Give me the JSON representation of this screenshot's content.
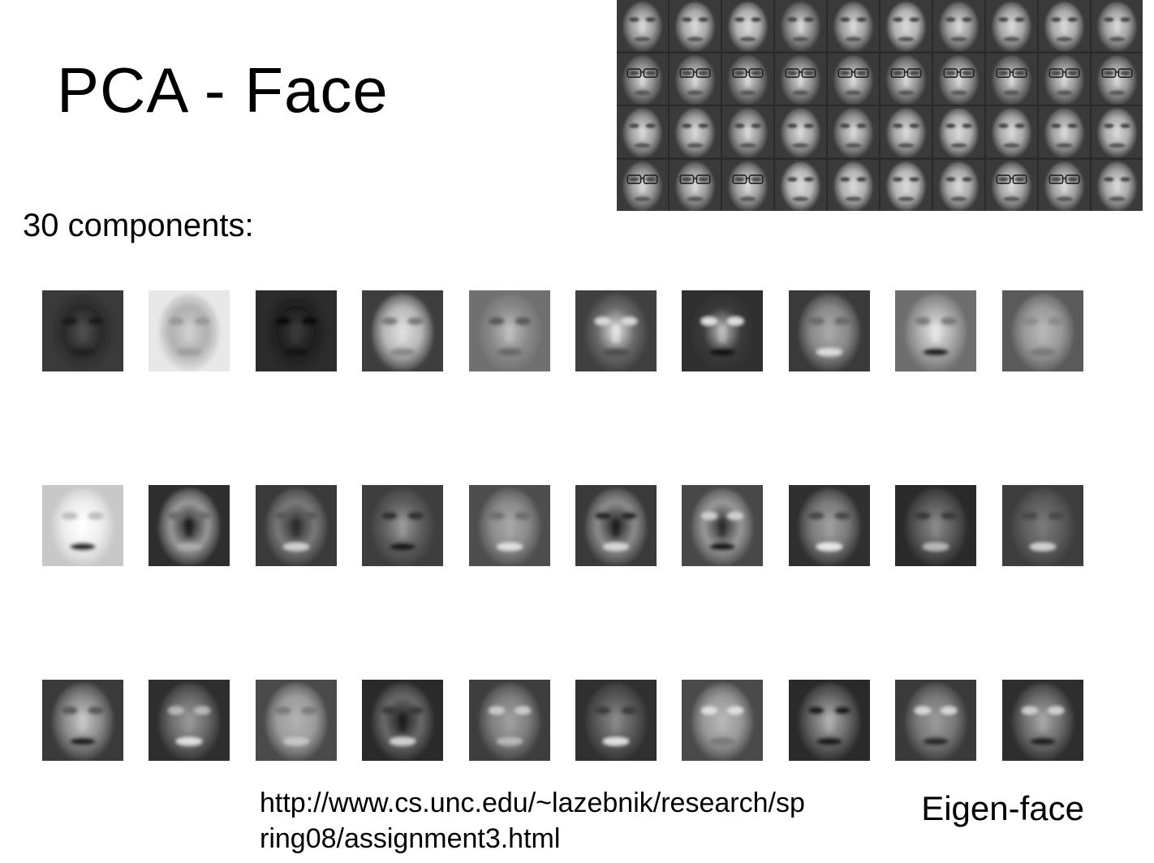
{
  "slide": {
    "title": "PCA - Face",
    "subtitle": "30 components:",
    "caption": "Eigen-face",
    "url_line1": "http://www.cs.unc.edu/~lazebnik/research/sp",
    "url_line2": "ring08/assignment3.html"
  },
  "dataset_thumbnails": {
    "rows": 4,
    "cols": 10,
    "tones": [
      [
        "#9a9a9a",
        "#a8a8a8",
        "#b0b0b0",
        "#8e8e8e",
        "#a0a0a0",
        "#b4b4b4",
        "#9c9c9c",
        "#a6a6a6",
        "#aaaaaa",
        "#a2a2a2"
      ],
      [
        "#8a8a8a",
        "#909090",
        "#888888",
        "#8c8c8c",
        "#929292",
        "#8e8e8e",
        "#949494",
        "#8a8a8a",
        "#909090",
        "#969696"
      ],
      [
        "#9e9e9e",
        "#a4a4a4",
        "#989898",
        "#a2a2a2",
        "#9a9a9a",
        "#a6a6a6",
        "#b2b2b2",
        "#a8a8a8",
        "#a0a0a0",
        "#aeaeae"
      ],
      [
        "#959595",
        "#999999",
        "#9d9d9d",
        "#b8b8b8",
        "#b0b0b0",
        "#b6b6b6",
        "#aaaaaa",
        "#a4a4a4",
        "#9e9e9e",
        "#a8a8a8"
      ]
    ]
  },
  "eigenfaces": {
    "rows": [
      [
        {
          "bg": "#3a3a3a",
          "face": "#2a2a2a",
          "eyes": "#1a1a1a",
          "mouth": "#202020",
          "hl": "#505050"
        },
        {
          "bg": "#e8e8e8",
          "face": "#b0b0b0",
          "eyes": "#9a9a9a",
          "mouth": "#a0a0a0",
          "hl": "#d0d0d0"
        },
        {
          "bg": "#2c2c2c",
          "face": "#1e1e1e",
          "eyes": "#101010",
          "mouth": "#181818",
          "hl": "#3a3a3a"
        },
        {
          "bg": "#3e3e3e",
          "face": "#b8b8b8",
          "eyes": "#7a7a7a",
          "mouth": "#8a8a8a",
          "hl": "#e0e0e0"
        },
        {
          "bg": "#707070",
          "face": "#8a8a8a",
          "eyes": "#5a5a5a",
          "mouth": "#6a6a6a",
          "hl": "#c0c0c0"
        },
        {
          "bg": "#404040",
          "face": "#6a6a6a",
          "eyes": "#d8d8d8",
          "mouth": "#505050",
          "hl": "#e8e8e8"
        },
        {
          "bg": "#303030",
          "face": "#3a3a3a",
          "eyes": "#e0e0e0",
          "mouth": "#181818",
          "hl": "#c0c0c0"
        },
        {
          "bg": "#3a3a3a",
          "face": "#8a8a8a",
          "eyes": "#6a6a6a",
          "mouth": "#dadada",
          "hl": "#a8a8a8"
        },
        {
          "bg": "#6e6e6e",
          "face": "#a8a8a8",
          "eyes": "#7a7a7a",
          "mouth": "#202020",
          "hl": "#e8e8e8"
        },
        {
          "bg": "#5a5a5a",
          "face": "#9a9a9a",
          "eyes": "#8a8a8a",
          "mouth": "#7a7a7a",
          "hl": "#b8b8b8"
        }
      ],
      [
        {
          "bg": "#c8c8c8",
          "face": "#eeeeee",
          "eyes": "#c0c0c0",
          "mouth": "#303030",
          "hl": "#ffffff"
        },
        {
          "bg": "#2e2e2e",
          "face": "#9a9a9a",
          "eyes": "#6a6a6a",
          "mouth": "#aaaaaa",
          "hl": "#1a1a1a"
        },
        {
          "bg": "#3a3a3a",
          "face": "#7a7a7a",
          "eyes": "#5a5a5a",
          "mouth": "#d0d0d0",
          "hl": "#2a2a2a"
        },
        {
          "bg": "#3e3e3e",
          "face": "#5e5e5e",
          "eyes": "#303030",
          "mouth": "#1a1a1a",
          "hl": "#9a9a9a"
        },
        {
          "bg": "#4e4e4e",
          "face": "#8a8a8a",
          "eyes": "#6e6e6e",
          "mouth": "#e0e0e0",
          "hl": "#a8a8a8"
        },
        {
          "bg": "#3a3a3a",
          "face": "#8e8e8e",
          "eyes": "#2a2a2a",
          "mouth": "#d8d8d8",
          "hl": "#1a1a1a"
        },
        {
          "bg": "#484848",
          "face": "#9a9a9a",
          "eyes": "#cfcfcf",
          "mouth": "#1a1a1a",
          "hl": "#2a2a2a"
        },
        {
          "bg": "#303030",
          "face": "#7a7a7a",
          "eyes": "#4a4a4a",
          "mouth": "#e8e8e8",
          "hl": "#a0a0a0"
        },
        {
          "bg": "#2a2a2a",
          "face": "#5a5a5a",
          "eyes": "#3a3a3a",
          "mouth": "#b8b8b8",
          "hl": "#8a8a8a"
        },
        {
          "bg": "#3e3e3e",
          "face": "#5e5e5e",
          "eyes": "#4a4a4a",
          "mouth": "#d0d0d0",
          "hl": "#7a7a7a"
        }
      ],
      [
        {
          "bg": "#3a3a3a",
          "face": "#8a8a8a",
          "eyes": "#5a5a5a",
          "mouth": "#202020",
          "hl": "#c8c8c8"
        },
        {
          "bg": "#2e2e2e",
          "face": "#6a6a6a",
          "eyes": "#b8b8b8",
          "mouth": "#e0e0e0",
          "hl": "#9a9a9a"
        },
        {
          "bg": "#4a4a4a",
          "face": "#9e9e9e",
          "eyes": "#7a7a7a",
          "mouth": "#c8c8c8",
          "hl": "#b0b0b0"
        },
        {
          "bg": "#2a2a2a",
          "face": "#6a6a6a",
          "eyes": "#3a3a3a",
          "mouth": "#d0d0d0",
          "hl": "#1a1a1a"
        },
        {
          "bg": "#3e3e3e",
          "face": "#7e7e7e",
          "eyes": "#cacaca",
          "mouth": "#b8b8b8",
          "hl": "#a0a0a0"
        },
        {
          "bg": "#303030",
          "face": "#5a5a5a",
          "eyes": "#3e3e3e",
          "mouth": "#e0e0e0",
          "hl": "#8a8a8a"
        },
        {
          "bg": "#4a4a4a",
          "face": "#9a9a9a",
          "eyes": "#e0e0e0",
          "mouth": "#7a7a7a",
          "hl": "#b8b8b8"
        },
        {
          "bg": "#2a2a2a",
          "face": "#6a6a6a",
          "eyes": "#1e1e1e",
          "mouth": "#1a1a1a",
          "hl": "#b0b0b0"
        },
        {
          "bg": "#3a3a3a",
          "face": "#7a7a7a",
          "eyes": "#d8d8d8",
          "mouth": "#2a2a2a",
          "hl": "#9a9a9a"
        },
        {
          "bg": "#2e2e2e",
          "face": "#6e6e6e",
          "eyes": "#cfcfcf",
          "mouth": "#202020",
          "hl": "#a8a8a8"
        }
      ]
    ]
  }
}
